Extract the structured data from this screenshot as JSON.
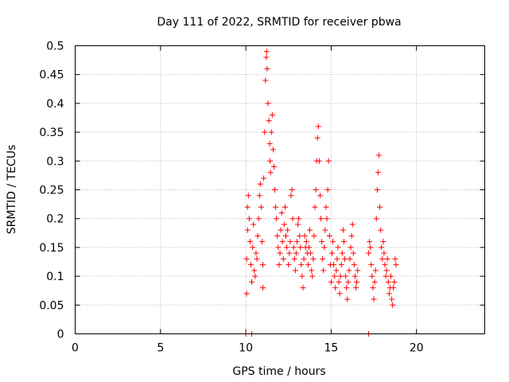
{
  "chart_data": {
    "type": "scatter",
    "title": "Day 111 of 2022, SRMTID for receiver pbwa",
    "xlabel": "GPS time / hours",
    "ylabel": "SRMTID / TECUs",
    "xlim": [
      0,
      24
    ],
    "ylim": [
      0,
      0.5
    ],
    "xticks": [
      0,
      5,
      10,
      15,
      20
    ],
    "xtick_labels": [
      "0",
      "5",
      "10",
      "15",
      "20"
    ],
    "yticks": [
      0,
      0.05,
      0.1,
      0.15,
      0.2,
      0.25,
      0.3,
      0.35,
      0.4,
      0.45,
      0.5
    ],
    "ytick_labels": [
      "0",
      "0.05",
      "0.1",
      "0.15",
      "0.2",
      "0.25",
      "0.3",
      "0.35",
      "0.4",
      "0.45",
      "0.5"
    ],
    "grid": true,
    "marker": "+",
    "color": "#ff0000",
    "series": [
      {
        "name": "SRMTID",
        "points": [
          [
            10.0,
            0.0
          ],
          [
            10.35,
            0.0
          ],
          [
            17.2,
            0.0
          ],
          [
            10.05,
            0.07
          ],
          [
            10.05,
            0.13
          ],
          [
            10.1,
            0.18
          ],
          [
            10.1,
            0.22
          ],
          [
            10.15,
            0.24
          ],
          [
            10.2,
            0.2
          ],
          [
            10.25,
            0.16
          ],
          [
            10.3,
            0.12
          ],
          [
            10.35,
            0.09
          ],
          [
            10.4,
            0.15
          ],
          [
            10.45,
            0.19
          ],
          [
            10.5,
            0.11
          ],
          [
            10.55,
            0.1
          ],
          [
            10.6,
            0.14
          ],
          [
            10.65,
            0.13
          ],
          [
            10.7,
            0.17
          ],
          [
            10.75,
            0.2
          ],
          [
            10.8,
            0.24
          ],
          [
            10.85,
            0.26
          ],
          [
            10.9,
            0.22
          ],
          [
            10.95,
            0.16
          ],
          [
            11.0,
            0.12
          ],
          [
            11.0,
            0.08
          ],
          [
            11.05,
            0.27
          ],
          [
            11.1,
            0.35
          ],
          [
            11.15,
            0.44
          ],
          [
            11.2,
            0.48
          ],
          [
            11.22,
            0.49
          ],
          [
            11.25,
            0.46
          ],
          [
            11.3,
            0.4
          ],
          [
            11.35,
            0.37
          ],
          [
            11.4,
            0.33
          ],
          [
            11.42,
            0.3
          ],
          [
            11.45,
            0.28
          ],
          [
            11.5,
            0.35
          ],
          [
            11.55,
            0.38
          ],
          [
            11.6,
            0.32
          ],
          [
            11.65,
            0.29
          ],
          [
            11.7,
            0.25
          ],
          [
            11.75,
            0.22
          ],
          [
            11.8,
            0.2
          ],
          [
            11.85,
            0.17
          ],
          [
            11.9,
            0.15
          ],
          [
            11.95,
            0.12
          ],
          [
            12.0,
            0.14
          ],
          [
            12.05,
            0.18
          ],
          [
            12.1,
            0.21
          ],
          [
            12.15,
            0.16
          ],
          [
            12.2,
            0.13
          ],
          [
            12.25,
            0.19
          ],
          [
            12.3,
            0.22
          ],
          [
            12.35,
            0.17
          ],
          [
            12.4,
            0.15
          ],
          [
            12.45,
            0.18
          ],
          [
            12.5,
            0.12
          ],
          [
            12.55,
            0.14
          ],
          [
            12.6,
            0.16
          ],
          [
            12.65,
            0.24
          ],
          [
            12.7,
            0.25
          ],
          [
            12.75,
            0.2
          ],
          [
            12.8,
            0.15
          ],
          [
            12.85,
            0.13
          ],
          [
            12.9,
            0.11
          ],
          [
            12.95,
            0.14
          ],
          [
            13.0,
            0.16
          ],
          [
            13.05,
            0.19
          ],
          [
            13.1,
            0.2
          ],
          [
            13.15,
            0.17
          ],
          [
            13.2,
            0.15
          ],
          [
            13.25,
            0.12
          ],
          [
            13.3,
            0.1
          ],
          [
            13.35,
            0.08
          ],
          [
            13.4,
            0.13
          ],
          [
            13.45,
            0.17
          ],
          [
            13.5,
            0.15
          ],
          [
            13.55,
            0.16
          ],
          [
            13.6,
            0.14
          ],
          [
            13.65,
            0.12
          ],
          [
            13.7,
            0.15
          ],
          [
            13.75,
            0.18
          ],
          [
            13.8,
            0.14
          ],
          [
            13.85,
            0.11
          ],
          [
            13.9,
            0.1
          ],
          [
            13.95,
            0.13
          ],
          [
            14.0,
            0.17
          ],
          [
            14.05,
            0.22
          ],
          [
            14.1,
            0.25
          ],
          [
            14.15,
            0.3
          ],
          [
            14.2,
            0.34
          ],
          [
            14.25,
            0.36
          ],
          [
            14.3,
            0.3
          ],
          [
            14.35,
            0.24
          ],
          [
            14.4,
            0.2
          ],
          [
            14.45,
            0.16
          ],
          [
            14.5,
            0.13
          ],
          [
            14.55,
            0.11
          ],
          [
            14.6,
            0.15
          ],
          [
            14.65,
            0.18
          ],
          [
            14.7,
            0.22
          ],
          [
            14.75,
            0.2
          ],
          [
            14.8,
            0.25
          ],
          [
            14.85,
            0.3
          ],
          [
            14.9,
            0.17
          ],
          [
            14.95,
            0.12
          ],
          [
            15.0,
            0.09
          ],
          [
            15.05,
            0.14
          ],
          [
            15.1,
            0.16
          ],
          [
            15.15,
            0.12
          ],
          [
            15.2,
            0.1
          ],
          [
            15.25,
            0.08
          ],
          [
            15.3,
            0.11
          ],
          [
            15.35,
            0.13
          ],
          [
            15.4,
            0.15
          ],
          [
            15.45,
            0.09
          ],
          [
            15.5,
            0.07
          ],
          [
            15.55,
            0.1
          ],
          [
            15.6,
            0.12
          ],
          [
            15.65,
            0.14
          ],
          [
            15.7,
            0.18
          ],
          [
            15.75,
            0.16
          ],
          [
            15.8,
            0.13
          ],
          [
            15.85,
            0.1
          ],
          [
            15.9,
            0.08
          ],
          [
            15.95,
            0.06
          ],
          [
            16.0,
            0.09
          ],
          [
            16.05,
            0.11
          ],
          [
            16.1,
            0.13
          ],
          [
            16.15,
            0.15
          ],
          [
            16.2,
            0.17
          ],
          [
            16.25,
            0.19
          ],
          [
            16.3,
            0.14
          ],
          [
            16.35,
            0.12
          ],
          [
            16.4,
            0.1
          ],
          [
            16.45,
            0.08
          ],
          [
            16.5,
            0.09
          ],
          [
            16.55,
            0.11
          ],
          [
            17.2,
            0.14
          ],
          [
            17.25,
            0.16
          ],
          [
            17.3,
            0.15
          ],
          [
            17.35,
            0.12
          ],
          [
            17.4,
            0.1
          ],
          [
            17.45,
            0.08
          ],
          [
            17.5,
            0.06
          ],
          [
            17.55,
            0.09
          ],
          [
            17.6,
            0.11
          ],
          [
            17.65,
            0.2
          ],
          [
            17.7,
            0.25
          ],
          [
            17.75,
            0.28
          ],
          [
            17.8,
            0.31
          ],
          [
            17.85,
            0.22
          ],
          [
            17.9,
            0.18
          ],
          [
            17.95,
            0.15
          ],
          [
            18.0,
            0.13
          ],
          [
            18.05,
            0.16
          ],
          [
            18.1,
            0.14
          ],
          [
            18.15,
            0.12
          ],
          [
            18.2,
            0.1
          ],
          [
            18.25,
            0.11
          ],
          [
            18.3,
            0.13
          ],
          [
            18.35,
            0.09
          ],
          [
            18.4,
            0.07
          ],
          [
            18.45,
            0.08
          ],
          [
            18.5,
            0.1
          ],
          [
            18.55,
            0.06
          ],
          [
            18.6,
            0.05
          ],
          [
            18.65,
            0.08
          ],
          [
            18.7,
            0.09
          ],
          [
            18.75,
            0.13
          ],
          [
            18.8,
            0.12
          ]
        ]
      }
    ]
  }
}
